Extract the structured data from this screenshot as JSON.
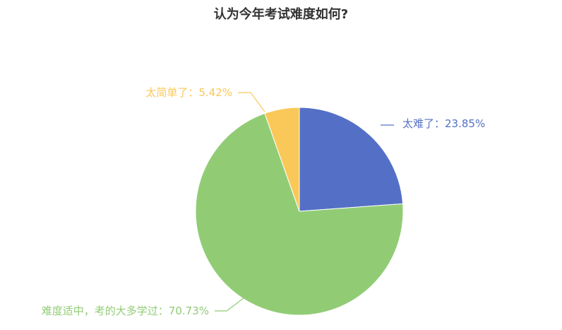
{
  "chart_data": {
    "type": "pie",
    "title": "认为今年考试难度如何?",
    "slices": [
      {
        "label": "太难了",
        "value": 23.85,
        "display": "太难了：23.85%",
        "color": "#5470c6"
      },
      {
        "label": "难度适中，考的大多学过",
        "value": 70.73,
        "display": "难度适中，考的大多学过：70.73%",
        "color": "#91cc75"
      },
      {
        "label": "太简单了",
        "value": 5.42,
        "display": "太简单了：5.42%",
        "color": "#fac858"
      }
    ],
    "legend": "none"
  }
}
